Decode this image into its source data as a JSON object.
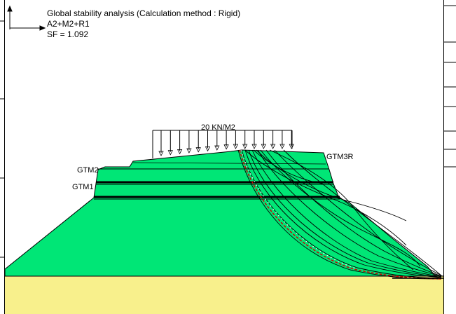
{
  "header": {
    "title": "Global stability analysis (Calculation method : Rigid)",
    "combination": "A2+M2+R1",
    "safety_factor": "SF = 1.092"
  },
  "load": {
    "label": "20 KN/M2"
  },
  "layers": {
    "gtm2": "GTM2",
    "gtm1": "GTM1",
    "gtm3r": "GTM3R"
  },
  "colors": {
    "embankment": "#00E676",
    "foundation": "#F8F08C",
    "lines": "#000000",
    "critical_surface": "#CC0000"
  }
}
